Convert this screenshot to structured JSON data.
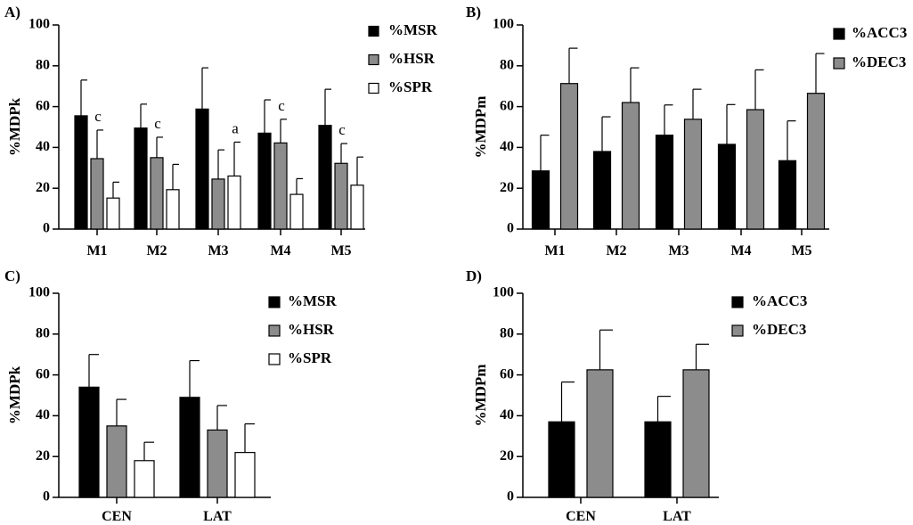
{
  "chart_data": [
    {
      "type": "bar",
      "panel": "A)",
      "ylabel": "%MDPk",
      "ylim": [
        0,
        100
      ],
      "yticks": [
        "0",
        "20",
        "40",
        "60",
        "80",
        "100"
      ],
      "categories": [
        "M1",
        "M2",
        "M3",
        "M4",
        "M5"
      ],
      "series": [
        {
          "name": "%MSR",
          "color": "#000000",
          "values": [
            55.5,
            49.5,
            58.8,
            47.0,
            50.8
          ],
          "errors": [
            17.5,
            11.7,
            20.2,
            16.3,
            17.7
          ]
        },
        {
          "name": "%HSR",
          "color": "#8c8c8c",
          "values": [
            34.5,
            35.0,
            24.5,
            42.2,
            32.2
          ],
          "errors": [
            14.0,
            10.0,
            14.3,
            11.6,
            9.7
          ]
        },
        {
          "name": "%SPR",
          "color": "#ffffff",
          "values": [
            15.2,
            19.3,
            26.0,
            17.0,
            21.5
          ],
          "errors": [
            7.8,
            12.4,
            16.6,
            7.7,
            13.8
          ]
        }
      ],
      "annotations": [
        {
          "category": "M1",
          "series": "%HSR",
          "text": "c"
        },
        {
          "category": "M2",
          "series": "%HSR",
          "text": "c"
        },
        {
          "category": "M3",
          "series": "%SPR",
          "text": "a"
        },
        {
          "category": "M4",
          "series": "%HSR",
          "text": "c"
        },
        {
          "category": "M5",
          "series": "%HSR",
          "text": "c"
        }
      ],
      "legend": "right"
    },
    {
      "type": "bar",
      "panel": "B)",
      "ylabel": "%MDPm",
      "ylim": [
        0,
        100
      ],
      "yticks": [
        "0",
        "20",
        "40",
        "60",
        "80",
        "100"
      ],
      "categories": [
        "M1",
        "M2",
        "M3",
        "M4",
        "M5"
      ],
      "series": [
        {
          "name": "%ACC3",
          "color": "#000000",
          "values": [
            28.5,
            38.0,
            46.0,
            41.5,
            33.5
          ],
          "errors": [
            17.5,
            17.0,
            14.8,
            19.5,
            19.5
          ]
        },
        {
          "name": "%DEC3",
          "color": "#8c8c8c",
          "values": [
            71.3,
            62.0,
            53.8,
            58.5,
            66.5
          ],
          "errors": [
            17.3,
            17.0,
            14.7,
            19.5,
            19.5
          ]
        }
      ],
      "annotations": [],
      "legend": "right"
    },
    {
      "type": "bar",
      "panel": "C)",
      "ylabel": "%MDPk",
      "ylim": [
        0,
        100
      ],
      "yticks": [
        "0",
        "20",
        "40",
        "60",
        "80",
        "100"
      ],
      "categories": [
        "CEN",
        "LAT"
      ],
      "series": [
        {
          "name": "%MSR",
          "color": "#000000",
          "values": [
            54.0,
            49.0
          ],
          "errors": [
            16.0,
            18.0
          ]
        },
        {
          "name": "%HSR",
          "color": "#8c8c8c",
          "values": [
            35.0,
            33.0
          ],
          "errors": [
            13.0,
            12.0
          ]
        },
        {
          "name": "%SPR",
          "color": "#ffffff",
          "values": [
            18.0,
            22.0
          ],
          "errors": [
            9.0,
            14.0
          ]
        }
      ],
      "annotations": [],
      "legend": "right"
    },
    {
      "type": "bar",
      "panel": "D)",
      "ylabel": "%MDPm",
      "ylim": [
        0,
        100
      ],
      "yticks": [
        "0",
        "20",
        "40",
        "60",
        "80",
        "100"
      ],
      "categories": [
        "CEN",
        "LAT"
      ],
      "series": [
        {
          "name": "%ACC3",
          "color": "#000000",
          "values": [
            37.0,
            37.0
          ],
          "errors": [
            19.5,
            12.5
          ]
        },
        {
          "name": "%DEC3",
          "color": "#8c8c8c",
          "values": [
            62.5,
            62.5
          ],
          "errors": [
            19.5,
            12.5
          ]
        }
      ],
      "annotations": [],
      "legend": "right"
    }
  ]
}
